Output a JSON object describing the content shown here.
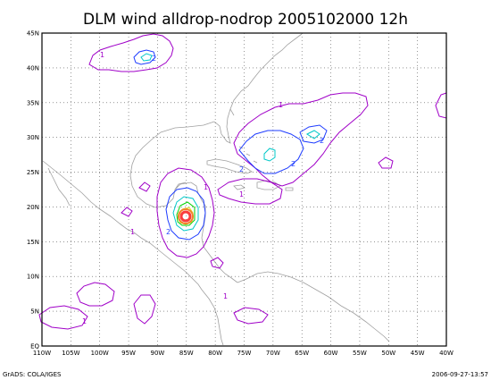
{
  "title": "DLM wind alldrop-nodrop 2005102000 12h",
  "footer": {
    "left": "GrADS: COLA/IGES",
    "right": "2006-09-27-13:57"
  },
  "axes": {
    "x_labels": [
      "110W",
      "105W",
      "100W",
      "95W",
      "90W",
      "85W",
      "80W",
      "75W",
      "70W",
      "65W",
      "60W",
      "55W",
      "50W",
      "45W",
      "40W"
    ],
    "y_labels": [
      "EQ",
      "5N",
      "10N",
      "15N",
      "20N",
      "25N",
      "30N",
      "35N",
      "40N",
      "45N"
    ],
    "lon_range": [
      -110,
      -40
    ],
    "lat_range": [
      0,
      45
    ],
    "grid": true
  },
  "contour_levels": [
    "1",
    "2"
  ],
  "colors": {
    "level1": "#a000c8",
    "level2": "#1e3cff",
    "level3": "#00c8c8",
    "level4": "#00d200",
    "level5": "#e6dc32",
    "level6": "#f08228",
    "level7": "#fa3c3c",
    "coast": "#a0a0a0",
    "grid": "#555555"
  }
}
